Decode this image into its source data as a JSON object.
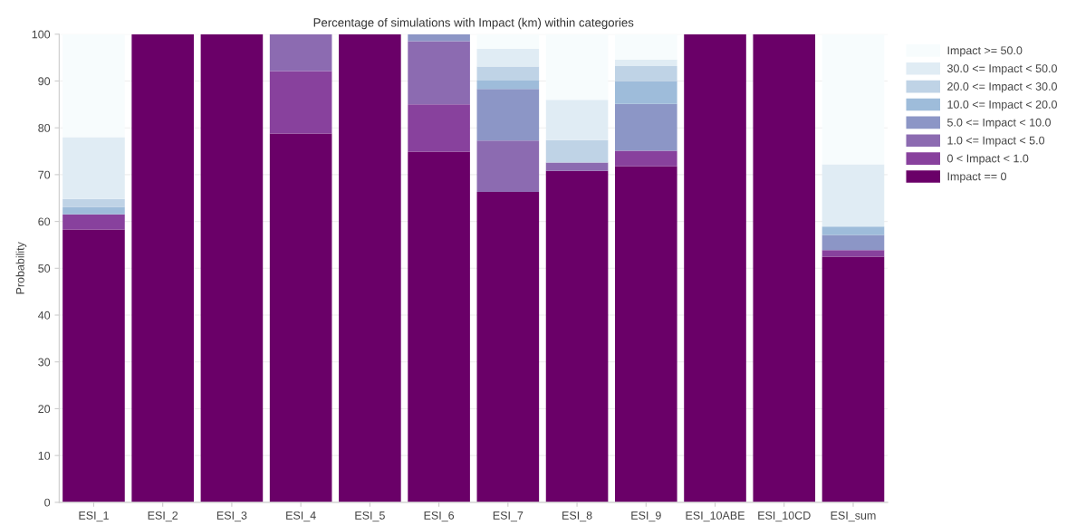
{
  "chart_data": {
    "type": "bar",
    "stacked": true,
    "title": "Percentage of simulations with Impact (km) within categories",
    "ylabel": "Probability",
    "categories": [
      "ESI_1",
      "ESI_2",
      "ESI_3",
      "ESI_4",
      "ESI_5",
      "ESI_6",
      "ESI_7",
      "ESI_8",
      "ESI_9",
      "ESI_10ABE",
      "ESI_10CD",
      "ESI_sum"
    ],
    "series": [
      {
        "name": "Impact == 0",
        "color": "#6a0068",
        "values": [
          58.3,
          100,
          100,
          78.8,
          100,
          74.9,
          66.3,
          70.8,
          71.8,
          100,
          100,
          52.5
        ]
      },
      {
        "name": "0 < Impact < 1.0",
        "color": "#88419d",
        "values": [
          3.2,
          0,
          0,
          13.3,
          0,
          10.1,
          0,
          0,
          3.3,
          0,
          0,
          1.4
        ]
      },
      {
        "name": "1.0 <= Impact < 5.0",
        "color": "#8c6bb1",
        "values": [
          0,
          0,
          0,
          7.9,
          0,
          13.5,
          11.0,
          1.8,
          0,
          0,
          0,
          0
        ]
      },
      {
        "name": "5.0 <= Impact < 10.0",
        "color": "#8c96c6",
        "values": [
          0,
          0,
          0,
          0,
          0,
          1.5,
          11.0,
          0,
          10.0,
          0,
          0,
          3.2
        ]
      },
      {
        "name": "10.0 <= Impact < 20.0",
        "color": "#9ebcda",
        "values": [
          1.6,
          0,
          0,
          0,
          0,
          0,
          1.8,
          0,
          4.9,
          0,
          0,
          1.8
        ]
      },
      {
        "name": "20.0 <= Impact < 30.0",
        "color": "#bfd3e6",
        "values": [
          1.7,
          0,
          0,
          0,
          0,
          0,
          3.0,
          4.8,
          3.2,
          0,
          0,
          0
        ]
      },
      {
        "name": "30.0 <= Impact < 50.0",
        "color": "#e0ecf4",
        "values": [
          13.2,
          0,
          0,
          0,
          0,
          0,
          3.8,
          8.6,
          1.4,
          0,
          0,
          13.3
        ]
      },
      {
        "name": "Impact >= 50.0",
        "color": "#f7fcfd",
        "values": [
          22.0,
          0,
          0,
          0,
          0,
          0,
          3.1,
          14.0,
          5.4,
          0,
          0,
          27.8
        ]
      }
    ],
    "ylim": [
      0,
      100
    ],
    "yticks": [
      0,
      10,
      20,
      30,
      40,
      50,
      60,
      70,
      80,
      90,
      100
    ],
    "grid": "y",
    "legend": "top right"
  }
}
